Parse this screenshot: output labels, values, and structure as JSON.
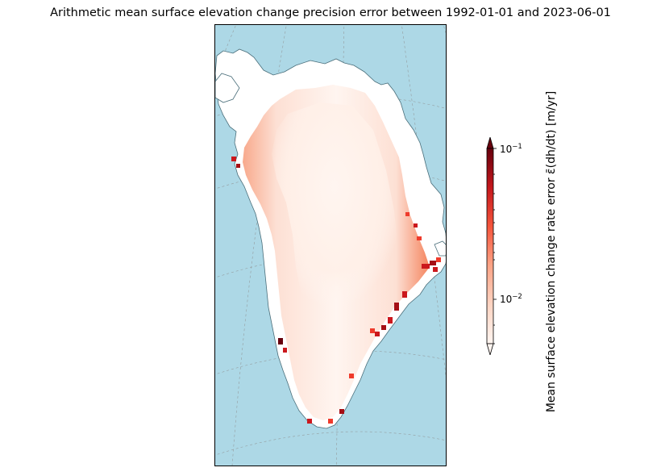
{
  "title": "Arithmetic mean surface elevation change precision error between 1992-01-01 and 2023-06-01",
  "colorbar": {
    "label": "Mean surface elevation change rate error ε̄(dh/dt) [m/yr]",
    "scale": "log",
    "colormap": "Reds",
    "range": [
      0.005,
      0.1
    ],
    "extend": "both",
    "ticks": [
      {
        "value": 0.1,
        "base": "10",
        "exponent": "−1"
      },
      {
        "value": 0.01,
        "base": "10",
        "exponent": "−2"
      }
    ]
  },
  "map": {
    "region": "Greenland",
    "projection": "polar stereographic",
    "graticule": true,
    "colors": {
      "ocean": "#add8e6",
      "land": "#ffffff",
      "coast": "#4a6e7a"
    }
  }
}
